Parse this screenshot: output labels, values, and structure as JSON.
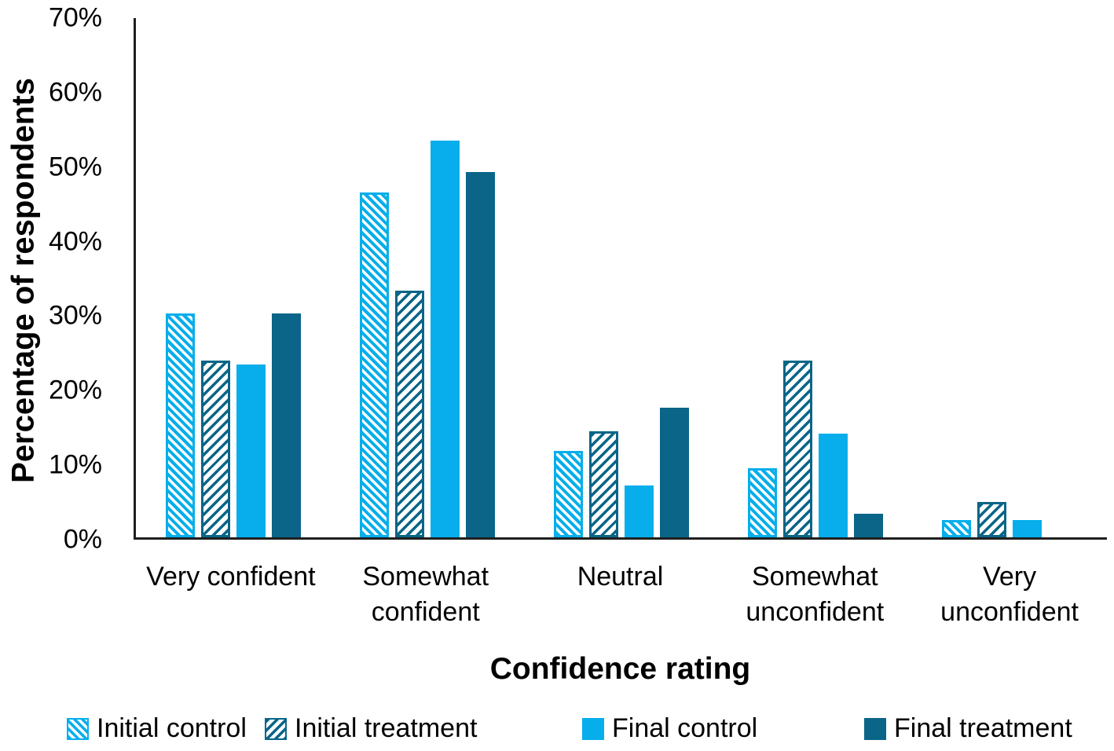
{
  "chart_data": {
    "type": "bar",
    "title": "",
    "xlabel": "Confidence rating",
    "ylabel": "Percentage of respondents",
    "categories": [
      "Very confident",
      "Somewhat confident",
      "Neutral",
      "Somewhat unconfident",
      "Very unconfident"
    ],
    "series": [
      {
        "name": "Initial control",
        "style": "hatch-light",
        "values": [
          30.2,
          46.5,
          11.6,
          9.3,
          2.3
        ]
      },
      {
        "name": "Initial treatment",
        "style": "hatch-dark",
        "values": [
          23.8,
          33.3,
          14.3,
          23.8,
          4.8
        ]
      },
      {
        "name": "Final control",
        "style": "solid-light",
        "values": [
          23.3,
          53.5,
          7.0,
          14.0,
          2.3
        ]
      },
      {
        "name": "Final treatment",
        "style": "solid-dark",
        "values": [
          30.2,
          49.2,
          17.5,
          3.2,
          0.0
        ]
      }
    ],
    "ylim": [
      0,
      70
    ],
    "ytick_step": 10,
    "yticks": [
      "70%",
      "60%",
      "50%",
      "40%",
      "30%",
      "20%",
      "10%",
      "0%"
    ],
    "grid": false,
    "legend_position": "bottom",
    "colors": {
      "light_blue": "#07AEEB",
      "dark_teal": "#0A6588",
      "axis": "#1f1f1f",
      "text": "#000000"
    }
  }
}
